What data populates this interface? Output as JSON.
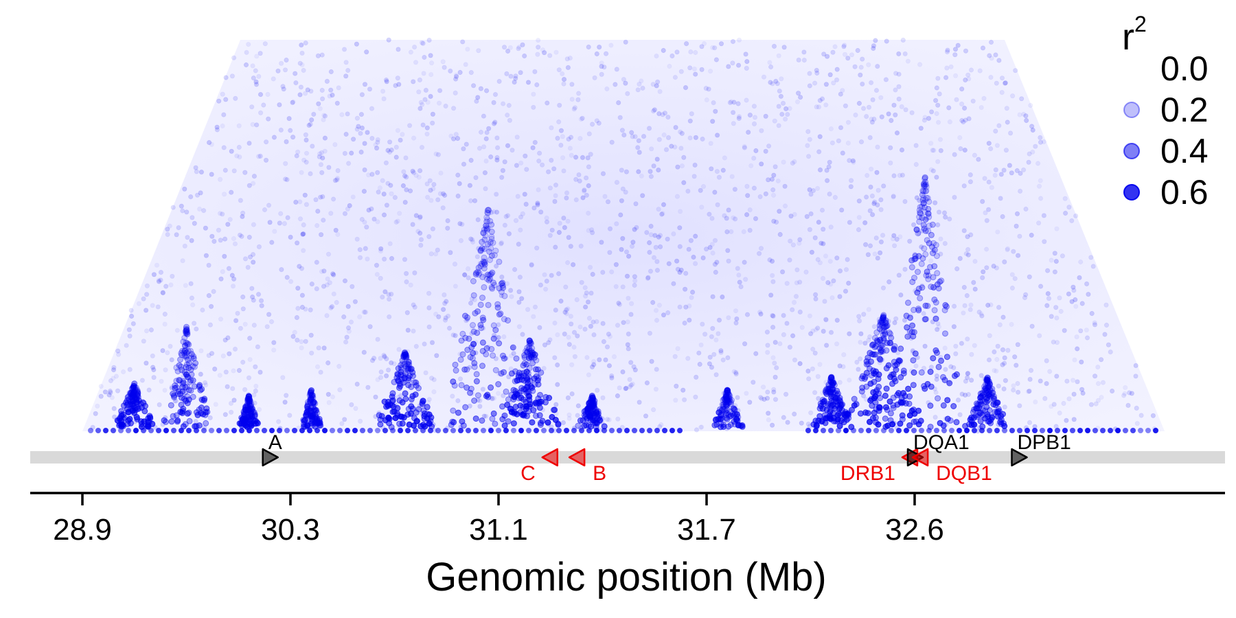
{
  "chart_data": {
    "type": "scatter",
    "subtype": "ld-heatmap-triangle",
    "xlabel": "Genomic position (Mb)",
    "ylabel": "",
    "x_ticks": [
      "28.9",
      "30.3",
      "31.1",
      "31.7",
      "32.6"
    ],
    "grid": false,
    "legend": {
      "title": "r",
      "title_superscript": "2",
      "placement": "top-right",
      "entries": [
        {
          "label": "0.0",
          "alpha": 0.0
        },
        {
          "label": "0.2",
          "alpha": 0.25
        },
        {
          "label": "0.4",
          "alpha": 0.5
        },
        {
          "label": "0.6",
          "alpha": 0.8
        }
      ]
    },
    "point_color": "#0000ee",
    "genes": [
      {
        "name": "A",
        "tick_index": 0.9,
        "strand": "+",
        "color": "#000000",
        "label_side": "top"
      },
      {
        "name": "C",
        "tick_index": 2.25,
        "strand": "-",
        "color": "#ee0000",
        "label_side": "bottom"
      },
      {
        "name": "B",
        "tick_index": 2.38,
        "strand": "-",
        "color": "#ee0000",
        "label_side": "bottom"
      },
      {
        "name": "DRB1",
        "tick_index": 3.98,
        "strand": "-",
        "color": "#ee0000",
        "label_side": "bottom"
      },
      {
        "name": "DQA1",
        "tick_index": 4.0,
        "strand": "+",
        "color": "#000000",
        "label_side": "top"
      },
      {
        "name": "DQB1",
        "tick_index": 4.03,
        "strand": "-",
        "color": "#ee0000",
        "label_side": "bottom"
      },
      {
        "name": "DPB1",
        "tick_index": 4.5,
        "strand": "+",
        "color": "#000000",
        "label_side": "top"
      }
    ],
    "ld_blocks": [
      {
        "center_tick": 0.25,
        "width_ticks": 0.2,
        "height": 0.07,
        "strength": 0.8
      },
      {
        "center_tick": 0.5,
        "width_ticks": 0.25,
        "height": 0.16,
        "strength": 0.6
      },
      {
        "center_tick": 0.8,
        "width_ticks": 0.1,
        "height": 0.05,
        "strength": 0.7
      },
      {
        "center_tick": 1.1,
        "width_ticks": 0.1,
        "height": 0.06,
        "strength": 0.6
      },
      {
        "center_tick": 1.55,
        "width_ticks": 0.3,
        "height": 0.12,
        "strength": 0.8
      },
      {
        "center_tick": 1.95,
        "width_ticks": 0.45,
        "height": 0.35,
        "strength": 0.55
      },
      {
        "center_tick": 2.15,
        "width_ticks": 0.3,
        "height": 0.14,
        "strength": 0.8
      },
      {
        "center_tick": 2.45,
        "width_ticks": 0.15,
        "height": 0.05,
        "strength": 0.6
      },
      {
        "center_tick": 3.1,
        "width_ticks": 0.15,
        "height": 0.06,
        "strength": 0.6
      },
      {
        "center_tick": 3.6,
        "width_ticks": 0.2,
        "height": 0.08,
        "strength": 0.8
      },
      {
        "center_tick": 3.85,
        "width_ticks": 0.4,
        "height": 0.18,
        "strength": 0.85
      },
      {
        "center_tick": 4.05,
        "width_ticks": 0.4,
        "height": 0.4,
        "strength": 0.65
      },
      {
        "center_tick": 4.35,
        "width_ticks": 0.2,
        "height": 0.08,
        "strength": 0.7
      }
    ]
  }
}
